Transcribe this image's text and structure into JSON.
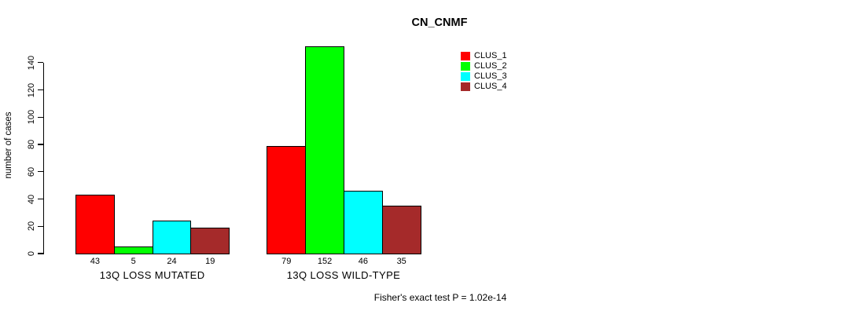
{
  "chart_data": {
    "type": "bar",
    "title": "CN_CNMF",
    "ylabel": "number of cases",
    "xlabel": "",
    "categories": [
      "13Q LOSS MUTATED",
      "13Q LOSS WILD-TYPE"
    ],
    "series": [
      {
        "name": "CLUS_1",
        "color": "#FF0000",
        "values": [
          43,
          79
        ]
      },
      {
        "name": "CLUS_2",
        "color": "#00FF00",
        "values": [
          5,
          152
        ]
      },
      {
        "name": "CLUS_3",
        "color": "#00FFFF",
        "values": [
          24,
          46
        ]
      },
      {
        "name": "CLUS_4",
        "color": "#A52A2A",
        "values": [
          19,
          35
        ]
      }
    ],
    "yticks": [
      0,
      20,
      40,
      60,
      80,
      100,
      120,
      140
    ],
    "ylim": [
      0,
      152
    ],
    "grid": false,
    "bar_value_labels_shown": true,
    "legend_position": "top-right",
    "annotation": "Fisher's exact test P = 1.02e-14"
  }
}
